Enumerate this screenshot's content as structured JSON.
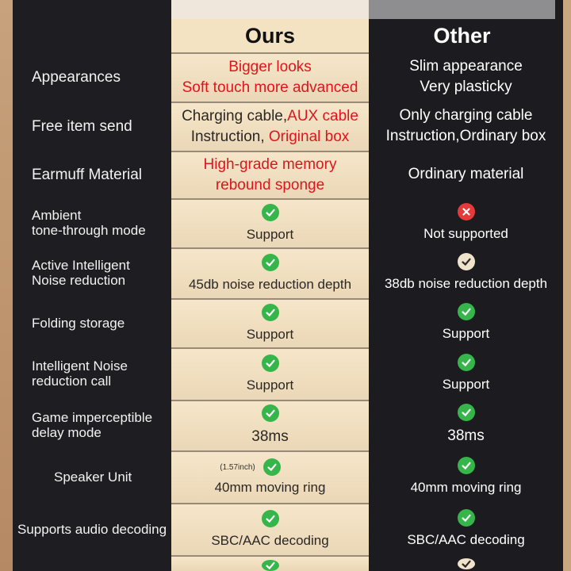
{
  "headers": {
    "ours": "Ours",
    "other": "Other"
  },
  "rows": [
    {
      "label": "Appearances",
      "ours": [
        "Bigger looks",
        "Soft touch more advanced"
      ],
      "other": [
        "Slim appearance",
        "Very plasticky"
      ]
    },
    {
      "label": "Free item send",
      "ours_line1_a": "Charging cable,",
      "ours_line1_b": "AUX cable",
      "ours_line2_a": "Instruction, ",
      "ours_line2_b": "Original box",
      "other": [
        "Only charging cable",
        "Instruction,Ordinary box"
      ]
    },
    {
      "label": "Earmuff Material",
      "ours": [
        "High-grade memory",
        "rebound sponge"
      ],
      "other": [
        "Ordinary material"
      ]
    },
    {
      "label": "Ambient\ntone-through mode",
      "ours": "Support",
      "other": "Not supported",
      "ours_icon": "check-icon",
      "other_icon": "cross-icon"
    },
    {
      "label": "Active Intelligent\nNoise reduction",
      "ours": "45db noise reduction depth",
      "other": "38db noise reduction depth",
      "ours_icon": "check-icon",
      "other_icon": "check-icon"
    },
    {
      "label": "Folding storage",
      "ours": "Support",
      "other": "Support",
      "ours_icon": "check-icon",
      "other_icon": "check-icon"
    },
    {
      "label": "Intelligent Noise\nreduction call",
      "ours": "Support",
      "other": "Support",
      "ours_icon": "check-icon",
      "other_icon": "check-icon"
    },
    {
      "label": "Game imperceptible\ndelay mode",
      "ours": "38ms",
      "other": "38ms",
      "ours_icon": "check-icon",
      "other_icon": "check-icon"
    },
    {
      "label": "Speaker Unit",
      "ours_note": "(1.57inch)",
      "ours": "40mm moving ring",
      "other": "40mm moving ring",
      "ours_icon": "check-icon",
      "other_icon": "check-icon"
    },
    {
      "label": "Supports audio decoding",
      "ours": "SBC/AAC decoding",
      "other": "SBC/AAC decoding",
      "ours_icon": "check-icon",
      "other_icon": "check-icon"
    }
  ],
  "colors": {
    "accent_red": "#e0141c",
    "check_green": "#35b54a",
    "cross_red": "#e53a3a",
    "ours_bg": "#f4e3c3",
    "other_bg": "#1c1b1f"
  }
}
